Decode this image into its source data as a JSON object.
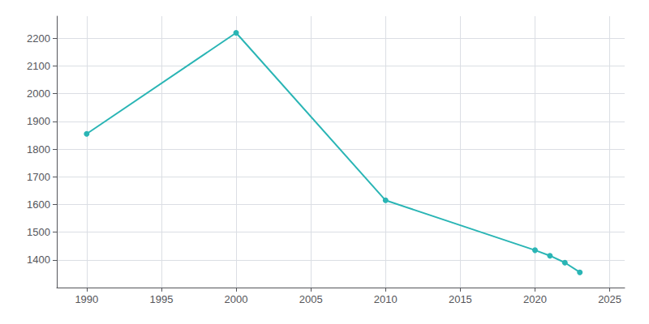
{
  "chart_data": {
    "type": "line",
    "x": [
      1990,
      2000,
      2010,
      2020,
      2021,
      2022,
      2023
    ],
    "values": [
      1855,
      2220,
      1615,
      1435,
      1415,
      1390,
      1355
    ],
    "color": "#2ab5b5",
    "marker": "circle",
    "xlim": [
      1988,
      2026
    ],
    "ylim": [
      1300,
      2280
    ],
    "xticks": [
      1990,
      1995,
      2000,
      2005,
      2010,
      2015,
      2020,
      2025
    ],
    "yticks": [
      1400,
      1500,
      1600,
      1700,
      1800,
      1900,
      2000,
      2100,
      2200
    ],
    "grid": true
  }
}
